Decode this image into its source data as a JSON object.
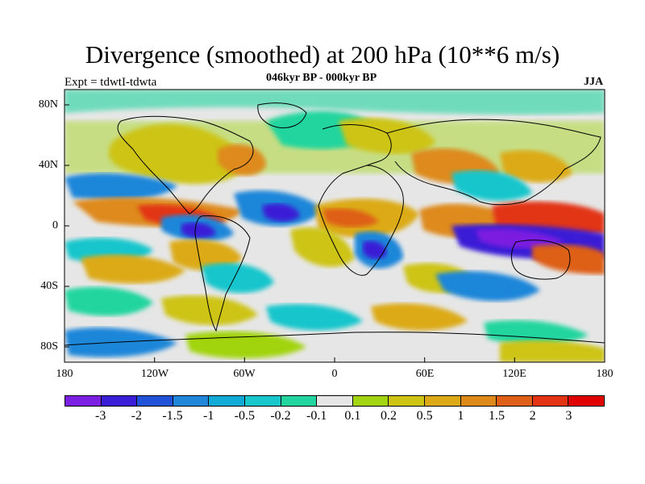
{
  "title": "Divergence (smoothed) at 200 hPa (10**6 m/s)",
  "subtitle": "046kyr BP - 000kyr BP",
  "experiment": "Expt = tdwtI-tdwta",
  "season": "JJA",
  "lat_labels": [
    "80N",
    "40N",
    "0",
    "40S",
    "80S"
  ],
  "lon_labels": [
    "180",
    "120W",
    "60W",
    "0",
    "60E",
    "120E",
    "180"
  ],
  "colorbar": {
    "labels": [
      "-3",
      "-2",
      "-1.5",
      "-1",
      "-0.5",
      "-0.2",
      "-0.1",
      "0.1",
      "0.2",
      "0.5",
      "1",
      "1.5",
      "2",
      "3"
    ],
    "colors": [
      "#7b1fe0",
      "#3a1fd6",
      "#1f52d8",
      "#1f86d9",
      "#11a9d6",
      "#18c6cc",
      "#22d59e",
      "#e6e6e6",
      "#a2d411",
      "#cdc414",
      "#dcaa16",
      "#de8a1a",
      "#de5f18",
      "#e23414",
      "#e00000"
    ]
  },
  "map_colors": {
    "ocean_neutral": "#e6e6e6",
    "deep_neg": "#3a1fd6",
    "neg": "#1f86d9",
    "light_neg": "#18c6cc",
    "green": "#22d59e",
    "light_pos": "#a2d411",
    "pos": "#cdc414",
    "orange": "#dcaa16",
    "dark_orange": "#de8a1a",
    "red": "#e23414"
  }
}
